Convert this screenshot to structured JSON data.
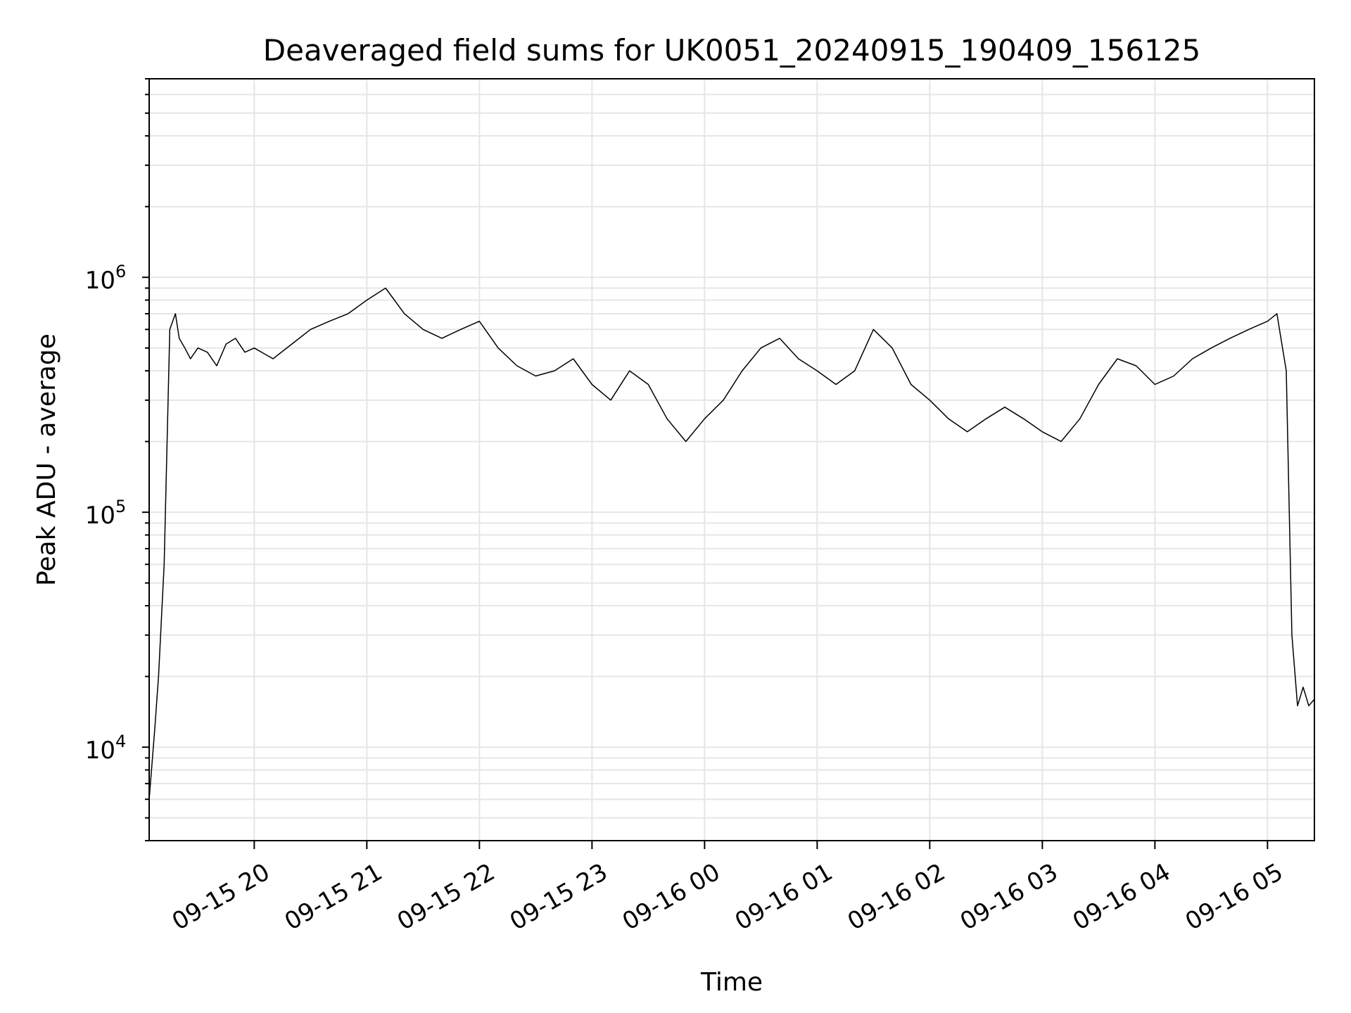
{
  "chart_data": {
    "type": "line",
    "title": "Deaveraged field sums for UK0051_20240915_190409_156125",
    "xlabel": "Time",
    "ylabel": "Peak ADU - average",
    "yscale": "log",
    "ylim": [
      4000,
      7000000
    ],
    "xlim": [
      "2024-09-15 19:04",
      "2024-09-16 05:25"
    ],
    "grid": true,
    "line_color": "#000000",
    "grid_color": "#e6e6e6",
    "x_ticks": [
      {
        "value": "2024-09-15 20:00",
        "label": "09-15 20"
      },
      {
        "value": "2024-09-15 21:00",
        "label": "09-15 21"
      },
      {
        "value": "2024-09-15 22:00",
        "label": "09-15 22"
      },
      {
        "value": "2024-09-15 23:00",
        "label": "09-15 23"
      },
      {
        "value": "2024-09-16 00:00",
        "label": "09-16 00"
      },
      {
        "value": "2024-09-16 01:00",
        "label": "09-16 01"
      },
      {
        "value": "2024-09-16 02:00",
        "label": "09-16 02"
      },
      {
        "value": "2024-09-16 03:00",
        "label": "09-16 03"
      },
      {
        "value": "2024-09-16 04:00",
        "label": "09-16 04"
      },
      {
        "value": "2024-09-16 05:00",
        "label": "09-16 05"
      }
    ],
    "y_ticks": [
      {
        "value": 10000,
        "base": "10",
        "exp": "4"
      },
      {
        "value": 100000,
        "base": "10",
        "exp": "5"
      },
      {
        "value": 1000000,
        "base": "10",
        "exp": "6"
      }
    ],
    "series": [
      {
        "x": [
          "2024-09-15 19:04",
          "2024-09-15 19:07",
          "2024-09-15 19:09",
          "2024-09-15 19:12",
          "2024-09-15 19:15",
          "2024-09-15 19:18",
          "2024-09-15 19:20",
          "2024-09-15 19:23",
          "2024-09-15 19:26",
          "2024-09-15 19:30",
          "2024-09-15 19:35",
          "2024-09-15 19:40",
          "2024-09-15 19:45",
          "2024-09-15 19:50",
          "2024-09-15 19:55",
          "2024-09-15 20:00",
          "2024-09-15 20:10",
          "2024-09-15 20:20",
          "2024-09-15 20:30",
          "2024-09-15 20:40",
          "2024-09-15 20:50",
          "2024-09-15 21:00",
          "2024-09-15 21:10",
          "2024-09-15 21:20",
          "2024-09-15 21:30",
          "2024-09-15 21:40",
          "2024-09-15 21:50",
          "2024-09-15 22:00",
          "2024-09-15 22:10",
          "2024-09-15 22:20",
          "2024-09-15 22:30",
          "2024-09-15 22:40",
          "2024-09-15 22:50",
          "2024-09-15 23:00",
          "2024-09-15 23:10",
          "2024-09-15 23:20",
          "2024-09-15 23:30",
          "2024-09-15 23:40",
          "2024-09-15 23:50",
          "2024-09-16 00:00",
          "2024-09-16 00:10",
          "2024-09-16 00:20",
          "2024-09-16 00:30",
          "2024-09-16 00:40",
          "2024-09-16 00:50",
          "2024-09-16 01:00",
          "2024-09-16 01:10",
          "2024-09-16 01:20",
          "2024-09-16 01:30",
          "2024-09-16 01:40",
          "2024-09-16 01:50",
          "2024-09-16 02:00",
          "2024-09-16 02:10",
          "2024-09-16 02:20",
          "2024-09-16 02:30",
          "2024-09-16 02:40",
          "2024-09-16 02:50",
          "2024-09-16 03:00",
          "2024-09-16 03:10",
          "2024-09-16 03:20",
          "2024-09-16 03:30",
          "2024-09-16 03:40",
          "2024-09-16 03:50",
          "2024-09-16 04:00",
          "2024-09-16 04:10",
          "2024-09-16 04:20",
          "2024-09-16 04:30",
          "2024-09-16 04:40",
          "2024-09-16 04:50",
          "2024-09-16 05:00",
          "2024-09-16 05:05",
          "2024-09-16 05:10",
          "2024-09-16 05:13",
          "2024-09-16 05:16",
          "2024-09-16 05:19",
          "2024-09-16 05:22",
          "2024-09-16 05:25"
        ],
        "values": [
          6000,
          12000,
          20000,
          60000,
          600000,
          700000,
          550000,
          500000,
          450000,
          500000,
          480000,
          420000,
          520000,
          550000,
          480000,
          500000,
          450000,
          520000,
          600000,
          650000,
          700000,
          800000,
          900000,
          700000,
          600000,
          550000,
          600000,
          650000,
          500000,
          420000,
          380000,
          400000,
          450000,
          350000,
          300000,
          400000,
          350000,
          250000,
          200000,
          250000,
          300000,
          400000,
          500000,
          550000,
          450000,
          400000,
          350000,
          400000,
          600000,
          500000,
          350000,
          300000,
          250000,
          220000,
          250000,
          280000,
          250000,
          220000,
          200000,
          250000,
          350000,
          450000,
          420000,
          350000,
          380000,
          450000,
          500000,
          550000,
          600000,
          650000,
          700000,
          400000,
          30000,
          15000,
          18000,
          15000,
          16000
        ]
      }
    ]
  }
}
